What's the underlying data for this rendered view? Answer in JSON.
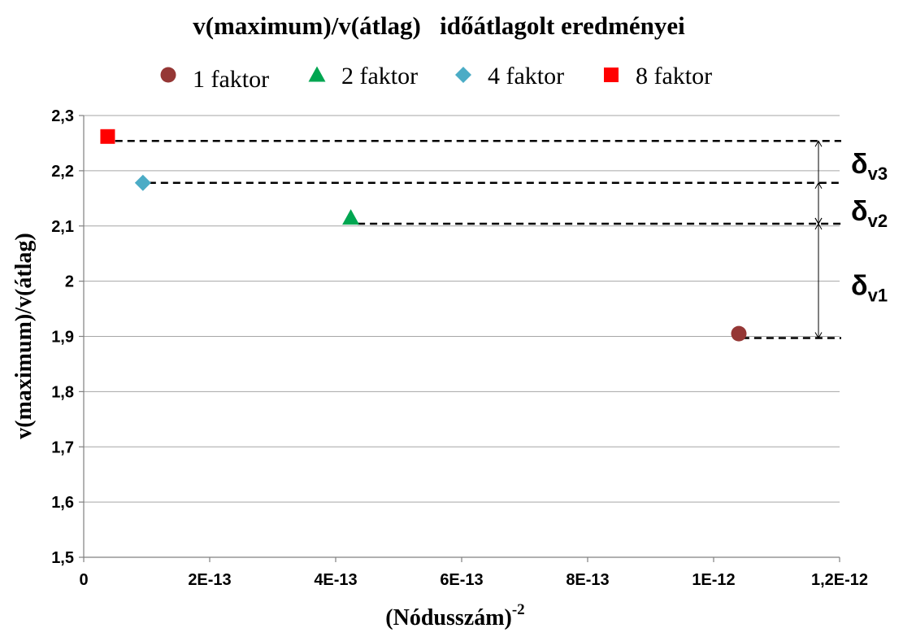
{
  "chart_data": {
    "type": "scatter",
    "title": "v(maximum)/v(átlag)   időátlagolt eredményei",
    "xlabel": "(Nódusszám)",
    "xlabel_sup": "-2",
    "ylabel": "v(maximum)/v(átlag)",
    "xlim": [
      0,
      1.2e-12
    ],
    "ylim": [
      1.5,
      2.3
    ],
    "grid": "horizontal",
    "legend_position": "top",
    "x_ticks": [
      {
        "value": 0,
        "label": "0"
      },
      {
        "value": 2e-13,
        "label": "2E-13"
      },
      {
        "value": 4e-13,
        "label": "4E-13"
      },
      {
        "value": 6e-13,
        "label": "6E-13"
      },
      {
        "value": 8e-13,
        "label": "8E-13"
      },
      {
        "value": 1e-12,
        "label": "1E-12"
      },
      {
        "value": 1.2e-12,
        "label": "1,2E-12"
      }
    ],
    "y_ticks": [
      {
        "value": 1.5,
        "label": "1,5"
      },
      {
        "value": 1.6,
        "label": "1,6"
      },
      {
        "value": 1.7,
        "label": "1,7"
      },
      {
        "value": 1.8,
        "label": "1,8"
      },
      {
        "value": 1.9,
        "label": "1,9"
      },
      {
        "value": 2.0,
        "label": "2"
      },
      {
        "value": 2.1,
        "label": "2,1"
      },
      {
        "value": 2.2,
        "label": "2,2"
      },
      {
        "value": 2.3,
        "label": "2,3"
      }
    ],
    "series": [
      {
        "name": "1 faktor",
        "marker": "circle",
        "color": "#953735",
        "x": [
          1.04e-12
        ],
        "y": [
          1.905
        ]
      },
      {
        "name": "2 faktor",
        "marker": "triangle",
        "color": "#00a651",
        "x": [
          4.24e-13
        ],
        "y": [
          2.115
        ]
      },
      {
        "name": "4 faktor",
        "marker": "diamond",
        "color": "#4bacc6",
        "x": [
          9.4e-14
        ],
        "y": [
          2.178
        ]
      },
      {
        "name": "8 faktor",
        "marker": "square",
        "color": "#ff0000",
        "x": [
          3.8e-14
        ],
        "y": [
          2.262
        ]
      }
    ],
    "reference_lines": [
      {
        "y": 2.254,
        "x_start": 5e-14
      },
      {
        "y": 2.178,
        "x_start": 1.03e-13
      },
      {
        "y": 2.104,
        "x_start": 4.35e-13
      },
      {
        "y": 1.897,
        "x_start": 1.045e-12
      }
    ],
    "annotations": [
      {
        "symbol": "δ",
        "sub": "v3",
        "y_from": 2.104,
        "y_to": 2.254,
        "label_y": 2.21
      },
      {
        "symbol": "δ",
        "sub": "v2",
        "y_from": 2.104,
        "y_to": 2.178,
        "label_y": 2.125
      },
      {
        "symbol": "δ",
        "sub": "v1",
        "y_from": 1.897,
        "y_to": 2.104,
        "label_y": 1.99
      }
    ]
  }
}
